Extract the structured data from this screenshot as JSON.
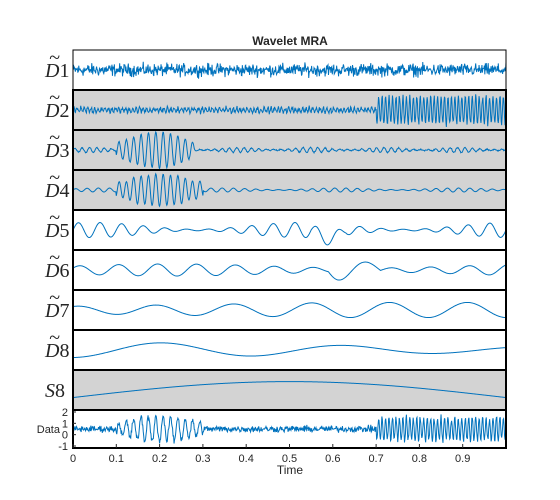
{
  "chart_data": {
    "type": "line",
    "title": "Wavelet MRA",
    "xlabel": "Time",
    "xlim": [
      0,
      1
    ],
    "xticks": [
      "0",
      "0.1",
      "0.2",
      "0.3",
      "0.4",
      "0.5",
      "0.6",
      "0.7",
      "0.8",
      "0.9"
    ],
    "line_color": "#0072BD",
    "shade_color": "#D3D3D3",
    "panels": [
      {
        "label": "D̃1",
        "base": "D",
        "sub": "1",
        "tilde": true,
        "shaded": false,
        "approx_amplitude": 0.7,
        "dominant_period": 0.004
      },
      {
        "label": "D̃2",
        "base": "D",
        "sub": "2",
        "tilde": true,
        "shaded": true,
        "approx_amplitude": 0.45,
        "dominant_period": 0.008,
        "note": "burst of large oscillations from t=0.7 to t=1.0"
      },
      {
        "label": "D̃3",
        "base": "D",
        "sub": "3",
        "tilde": true,
        "shaded": true,
        "approx_amplitude": 0.9,
        "dominant_period": 0.017,
        "note": "burst from t=0.1 to t=0.28"
      },
      {
        "label": "D̃4",
        "base": "D",
        "sub": "4",
        "tilde": true,
        "shaded": true,
        "approx_amplitude": 0.9,
        "dominant_period": 0.017,
        "note": "burst from t=0.1 to t=0.3"
      },
      {
        "label": "D̃5",
        "base": "D",
        "sub": "5",
        "tilde": true,
        "shaded": false,
        "approx_amplitude": 0.5,
        "dominant_period": 0.05
      },
      {
        "label": "D̃6",
        "base": "D",
        "sub": "6",
        "tilde": true,
        "shaded": false,
        "approx_amplitude": 0.45,
        "dominant_period": 0.09
      },
      {
        "label": "D̃7",
        "base": "D",
        "sub": "7",
        "tilde": true,
        "shaded": false,
        "approx_amplitude": 0.5,
        "dominant_period": 0.18
      },
      {
        "label": "D̃8",
        "base": "D",
        "sub": "8",
        "tilde": true,
        "shaded": false,
        "approx_amplitude": 0.45,
        "dominant_period": 0.42
      },
      {
        "label": "S8",
        "base": "S",
        "sub": "8",
        "tilde": false,
        "shaded": true,
        "approx_amplitude": 0.5,
        "dominant_period": 2.0,
        "note": "single smooth hump peaking near t=0.5"
      },
      {
        "label": "Data",
        "base": "Data",
        "sub": "",
        "tilde": false,
        "shaded": false,
        "yticks": [
          "2",
          "1",
          "0",
          "-1"
        ],
        "ylim": [
          -1,
          2
        ]
      }
    ]
  }
}
